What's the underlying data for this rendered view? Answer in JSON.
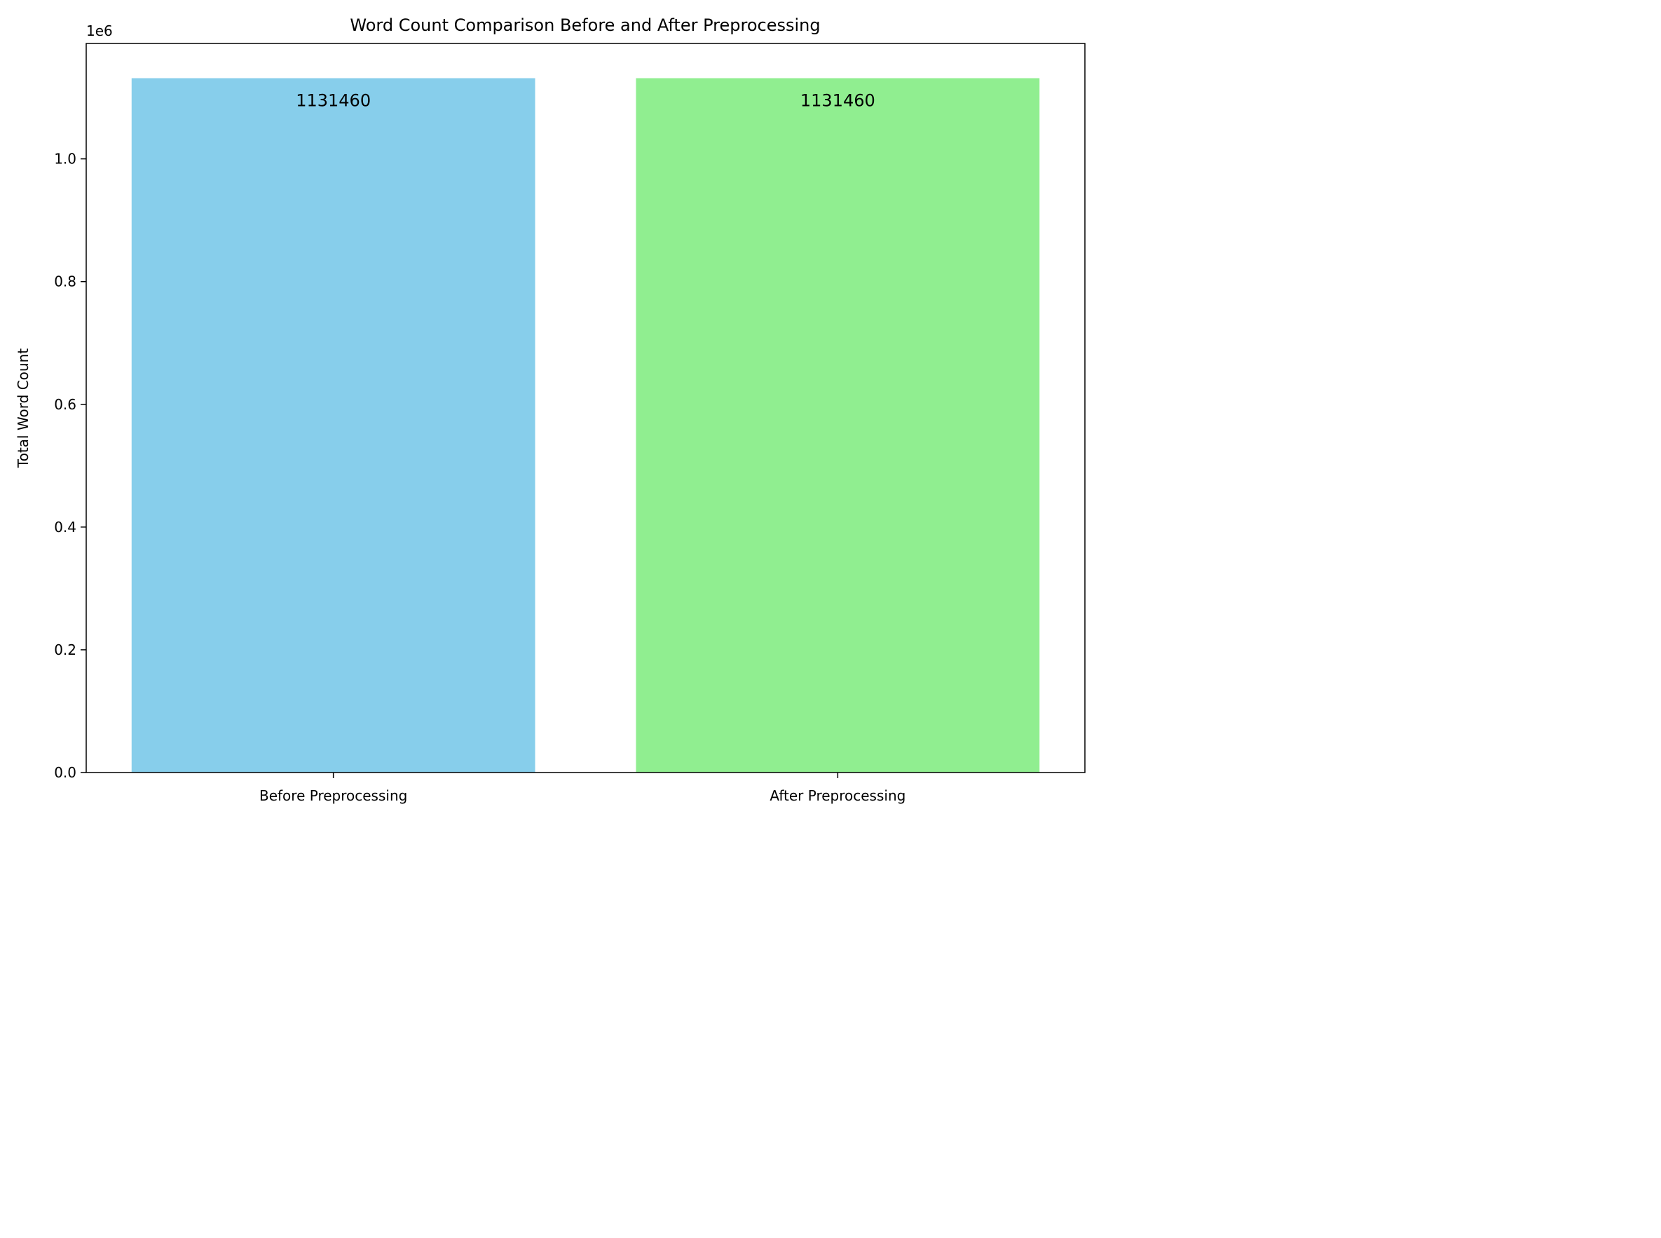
{
  "chart_data": {
    "type": "bar",
    "title": "Word Count Comparison Before and After Preprocessing",
    "xlabel": "",
    "ylabel": "Total Word Count",
    "y_offset_label": "1e6",
    "categories": [
      "Before Preprocessing",
      "After Preprocessing"
    ],
    "values": [
      1131460,
      1131460
    ],
    "data_labels": [
      "1131460",
      "1131460"
    ],
    "colors": [
      "#87CEEB",
      "#90EE90"
    ],
    "ylim": [
      0,
      1188033
    ],
    "yticks": [
      0,
      200000,
      400000,
      600000,
      800000,
      1000000
    ],
    "ytick_labels": [
      "0.0",
      "0.2",
      "0.4",
      "0.6",
      "0.8",
      "1.0"
    ],
    "grid": false,
    "legend": "none"
  }
}
